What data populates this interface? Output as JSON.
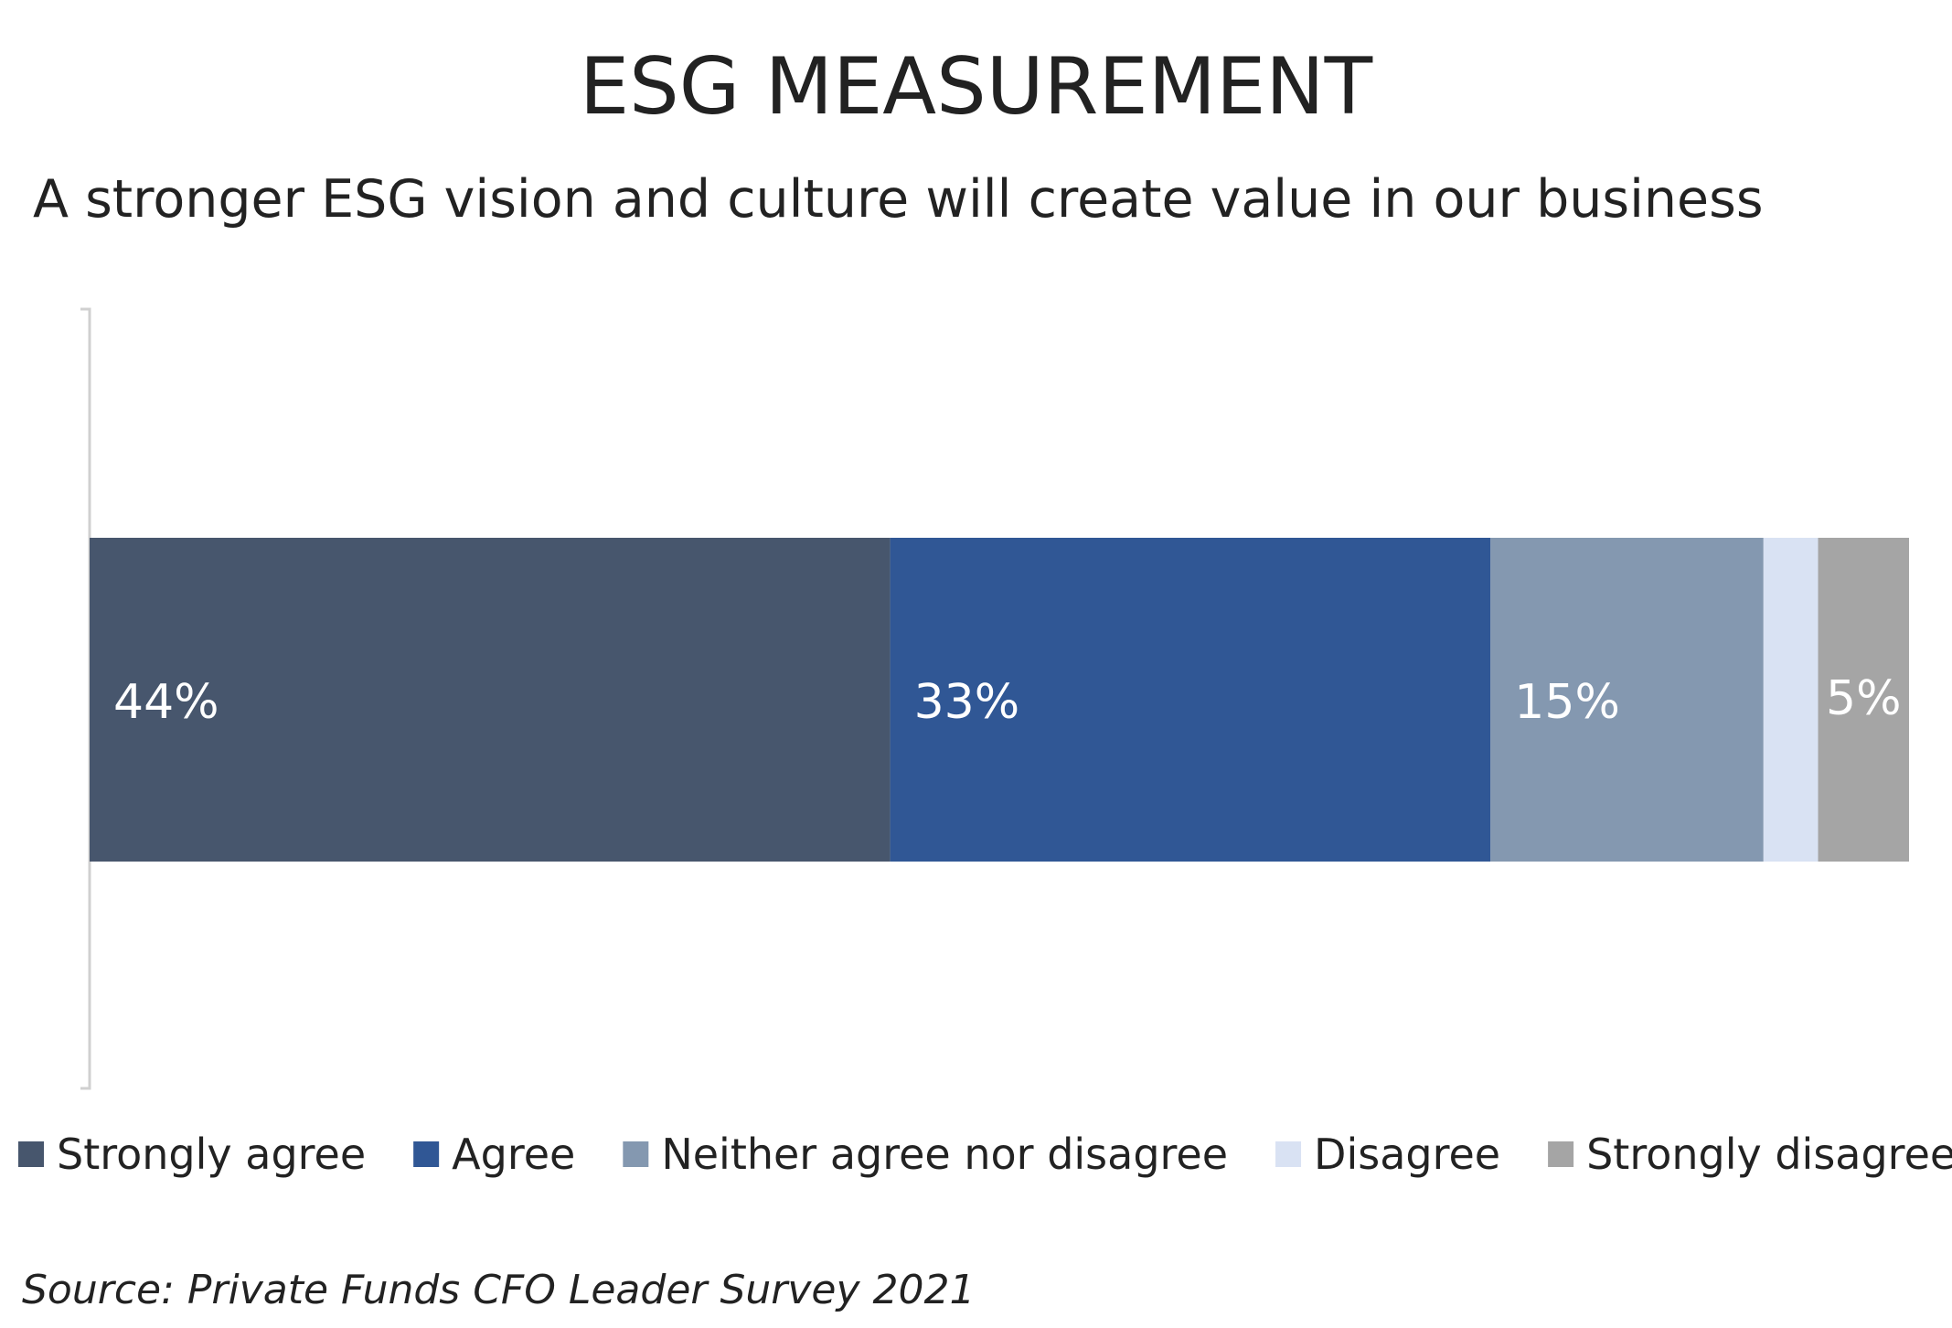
{
  "title": "ESG MEASUREMENT",
  "subtitle": "A stronger ESG vision and culture will create value in our business",
  "source": "Source: Private Funds CFO Leader Survey 2021",
  "chart_data": {
    "type": "bar",
    "orientation": "horizontal",
    "stacked": true,
    "categories": [
      ""
    ],
    "series": [
      {
        "name": "Strongly agree",
        "values": [
          44
        ],
        "label": "44%",
        "color": "#47566d"
      },
      {
        "name": "Agree",
        "values": [
          33
        ],
        "label": "33%",
        "color": "#305795"
      },
      {
        "name": "Neither agree nor disagree",
        "values": [
          15
        ],
        "label": "15%",
        "color": "#8498b0"
      },
      {
        "name": "Disagree",
        "values": [
          3
        ],
        "label": "",
        "color": "#d9e2f3"
      },
      {
        "name": "Strongly disagree",
        "values": [
          5
        ],
        "label": "5%",
        "color": "#a5a5a5"
      }
    ],
    "xlim": [
      0,
      100
    ],
    "grid": false,
    "legend": "bottom"
  }
}
